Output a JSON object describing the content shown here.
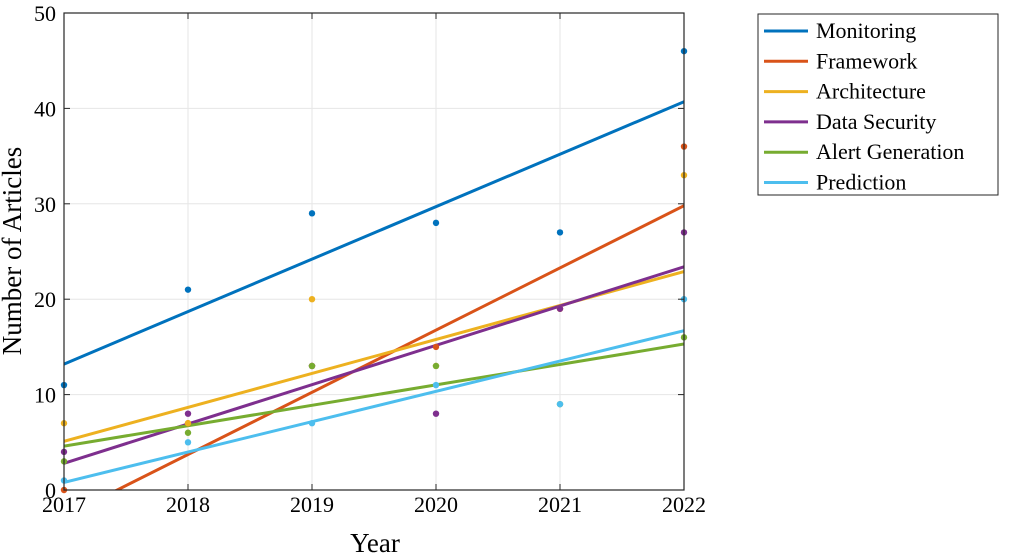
{
  "chart_data": {
    "type": "scatter",
    "title": "",
    "xlabel": "Year",
    "ylabel": "Number of Articles",
    "xlim": [
      2017,
      2022
    ],
    "ylim": [
      0,
      50
    ],
    "xticks": [
      "2017",
      "2018",
      "2019",
      "2020",
      "2021",
      "2022"
    ],
    "yticks": [
      "0",
      "10",
      "20",
      "30",
      "40",
      "50"
    ],
    "grid": true,
    "legend_position": "outside-top-right",
    "x": [
      2017,
      2018,
      2019,
      2020,
      2021,
      2022
    ],
    "series": [
      {
        "name": "Monitoring",
        "color": "#0072BD",
        "values": [
          11,
          21,
          29,
          28,
          27,
          46
        ],
        "fit": [
          13.2,
          40.7
        ]
      },
      {
        "name": "Framework",
        "color": "#D95319",
        "values": [
          0,
          7,
          13,
          15,
          19,
          36
        ],
        "fit": [
          -2.8,
          29.8
        ]
      },
      {
        "name": "Architecture",
        "color": "#EDB120",
        "values": [
          7,
          7,
          20,
          13,
          19,
          33
        ],
        "fit": [
          5.1,
          22.9
        ]
      },
      {
        "name": "Data Security",
        "color": "#7E2F8E",
        "values": [
          4,
          8,
          13,
          8,
          19,
          27
        ],
        "fit": [
          2.8,
          23.4
        ]
      },
      {
        "name": "Alert Generation",
        "color": "#77AC30",
        "values": [
          3,
          6,
          13,
          13,
          9,
          16
        ],
        "fit": [
          4.6,
          15.3
        ]
      },
      {
        "name": "Prediction",
        "color": "#4DBEEE",
        "values": [
          1,
          5,
          7,
          11,
          9,
          20
        ],
        "fit": [
          0.8,
          16.7
        ]
      }
    ]
  }
}
